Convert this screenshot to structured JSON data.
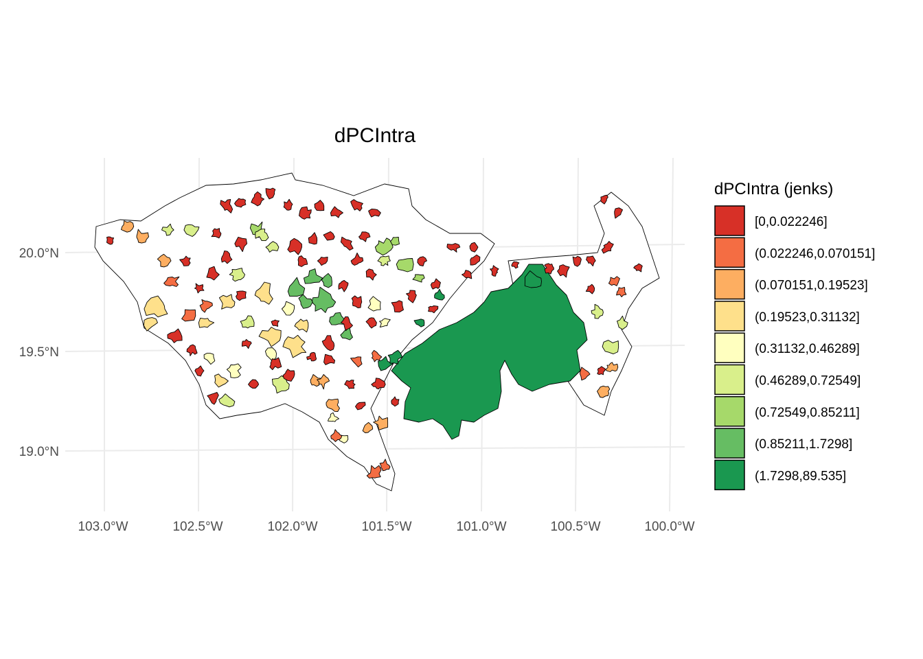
{
  "map": {
    "title": "dPCIntra",
    "x_ticks": [
      "103.0°W",
      "102.5°W",
      "102.0°W",
      "101.5°W",
      "101.0°W",
      "100.5°W",
      "100.0°W"
    ],
    "y_ticks": [
      "20.0°N",
      "19.5°N",
      "19.0°N"
    ],
    "x_range_deg_w": [
      103.0,
      100.0
    ],
    "y_range_deg_n": [
      19.0,
      20.0
    ],
    "outline_fill": "#ffffff",
    "outline_stroke": "#000000"
  },
  "legend": {
    "title": "dPCIntra (jenks)",
    "classes": [
      {
        "label": "[0,0.022246]",
        "color": "#d73027"
      },
      {
        "label": "(0.022246,0.070151]",
        "color": "#f46d43"
      },
      {
        "label": "(0.070151,0.19523]",
        "color": "#fdae61"
      },
      {
        "label": "(0.19523,0.31132]",
        "color": "#fee08b"
      },
      {
        "label": "(0.31132,0.46289]",
        "color": "#ffffbf"
      },
      {
        "label": "(0.46289,0.72549]",
        "color": "#d9ef8b"
      },
      {
        "label": "(0.72549,0.85211]",
        "color": "#a6d96a"
      },
      {
        "label": "(0.85211,1.7298]",
        "color": "#66bd63"
      },
      {
        "label": "(1.7298,89.535]",
        "color": "#1a9850"
      }
    ]
  }
}
